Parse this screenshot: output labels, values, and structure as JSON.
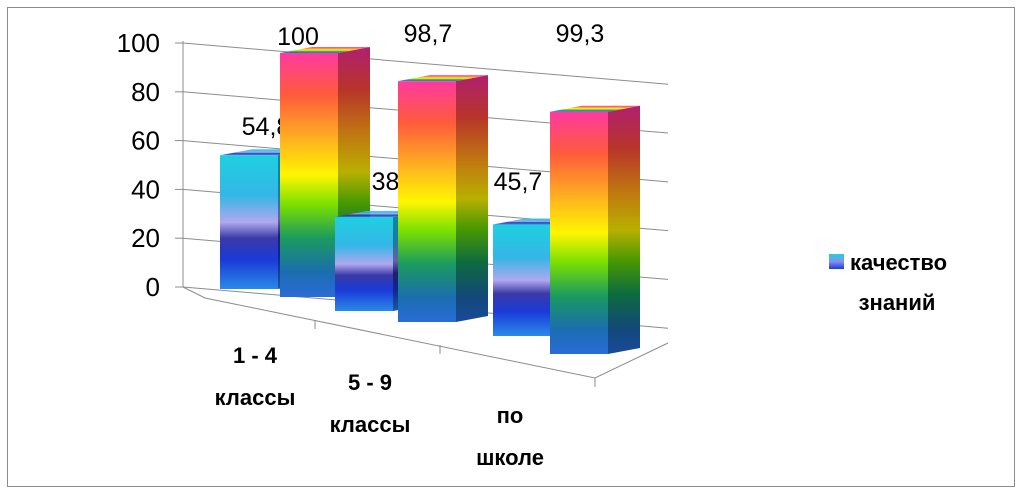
{
  "chart_data": {
    "type": "bar",
    "categories": [
      [
        "1 - 4",
        "классы"
      ],
      [
        "5 - 9",
        "классы"
      ],
      [
        "по",
        "школе"
      ]
    ],
    "yticks": [
      "0",
      "20",
      "40",
      "60",
      "80",
      "100"
    ],
    "ylim": [
      0,
      100
    ],
    "series": [
      {
        "values": [
          54.8,
          38.5,
          45.7
        ],
        "labels": [
          "54,8",
          "38,5",
          "45,7"
        ]
      },
      {
        "values": [
          100,
          98.7,
          99.3
        ],
        "labels": [
          "100",
          "98,7",
          "99,3"
        ]
      }
    ],
    "legend": {
      "entries": [
        [
          "качество",
          "знаний"
        ]
      ],
      "position": "right"
    },
    "grid": true,
    "three_d": true
  }
}
